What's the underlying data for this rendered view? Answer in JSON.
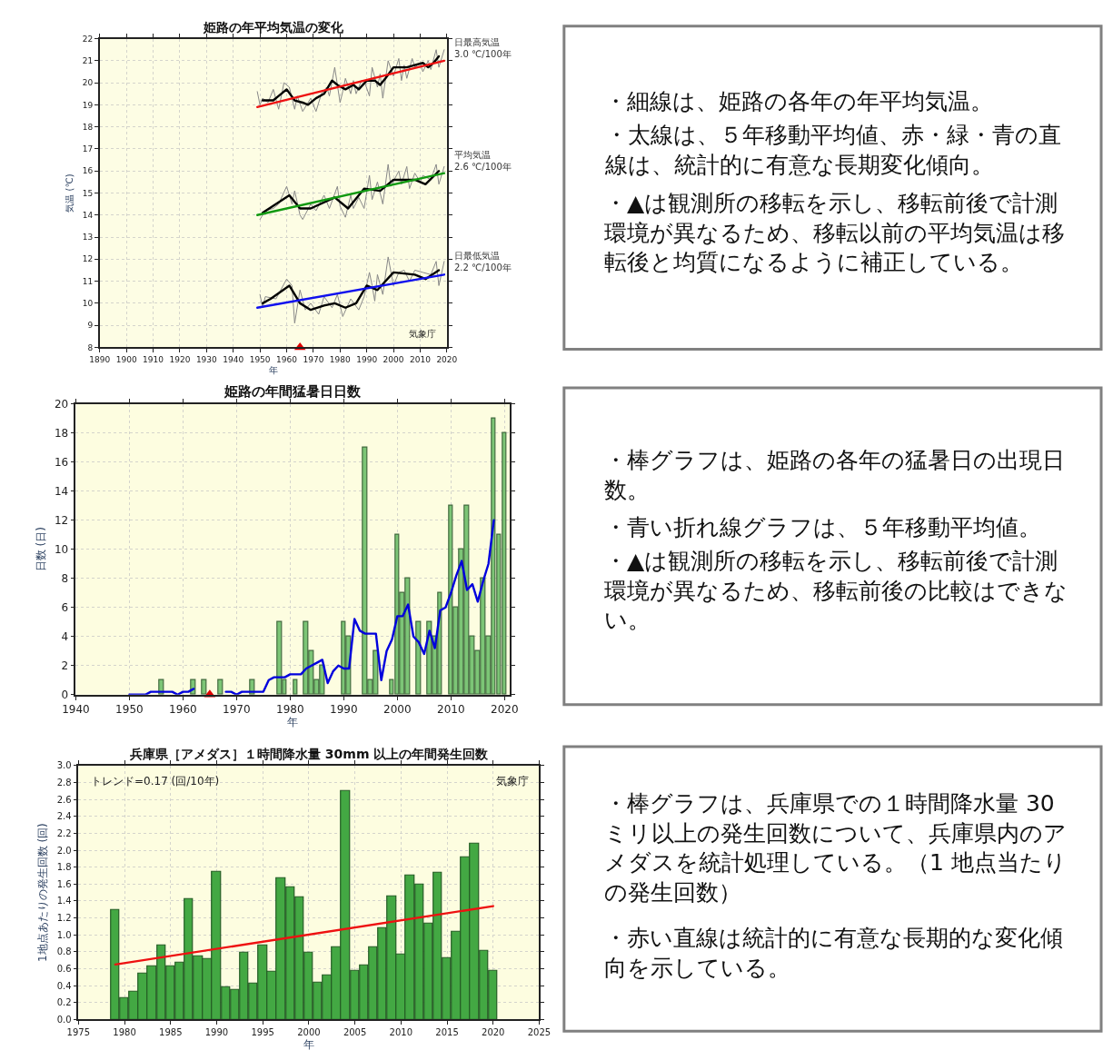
{
  "chart_data": [
    {
      "type": "line",
      "title": "姫路の年平均気温の変化",
      "xlabel": "年",
      "ylabel": "気温 (℃)",
      "xlim": [
        1890,
        2020
      ],
      "ylim": [
        8,
        22
      ],
      "xticks": [
        1890,
        1900,
        1910,
        1920,
        1930,
        1940,
        1950,
        1960,
        1970,
        1980,
        1990,
        2000,
        2010,
        2020
      ],
      "yticks": [
        8,
        9,
        10,
        11,
        12,
        13,
        14,
        15,
        16,
        17,
        18,
        19,
        20,
        21,
        22
      ],
      "grid": true,
      "annotations": [
        "気象庁"
      ],
      "series": [
        {
          "color": "#888888",
          "x": [
            1949,
            1950,
            1951,
            1953,
            1955,
            1957,
            1959,
            1961,
            1963,
            1964,
            1966,
            1969,
            1971,
            1973,
            1975,
            1976,
            1978,
            1979,
            1980,
            1981,
            1982,
            1984,
            1985,
            1986,
            1988,
            1989,
            1991,
            1992,
            1994,
            1995,
            1996,
            1998,
            2000,
            2002,
            2003,
            2004,
            2005,
            2007,
            2008,
            2010,
            2011,
            2013,
            2014,
            2016,
            2017,
            2019
          ],
          "values": [
            19.6,
            19.0,
            19.3,
            19.1,
            19.7,
            18.8,
            20.0,
            19.8,
            18.8,
            19.4,
            18.7,
            19.3,
            18.7,
            19.5,
            19.8,
            19.4,
            20.7,
            19.9,
            19.1,
            19.6,
            20.2,
            19.5,
            20.1,
            19.5,
            20.1,
            20.1,
            19.4,
            20.7,
            19.8,
            20.4,
            19.3,
            21.0,
            20.3,
            21.1,
            20.1,
            20.8,
            20.2,
            21.1,
            20.7,
            20.9,
            20.5,
            21.0,
            20.6,
            21.5,
            20.7,
            21.5
          ]
        },
        {
          "color": "#000000",
          "x": [
            1951,
            1955,
            1957,
            1960,
            1963,
            1966,
            1968,
            1971,
            1974,
            1977,
            1979,
            1982,
            1985,
            1987,
            1990,
            1993,
            1995,
            1997,
            2000,
            2002,
            2005,
            2008,
            2011,
            2013,
            2015,
            2017
          ],
          "values": [
            19.2,
            19.2,
            19.4,
            19.7,
            19.2,
            19.1,
            19.0,
            19.3,
            19.5,
            20.1,
            19.9,
            19.7,
            19.9,
            19.7,
            20.1,
            20.1,
            19.9,
            20.2,
            20.7,
            20.7,
            20.7,
            20.8,
            20.9,
            20.7,
            20.9,
            21.2
          ]
        },
        {
          "name": "日最高気温\n3.0 ℃/100年",
          "color": "#ee1111",
          "x": [
            1949,
            2019
          ],
          "values": [
            18.9,
            21.0
          ]
        },
        {
          "color": "#888888",
          "x": [
            1950,
            1952,
            1955,
            1957,
            1960,
            1962,
            1963,
            1965,
            1966,
            1969,
            1971,
            1974,
            1976,
            1979,
            1980,
            1982,
            1984,
            1985,
            1987,
            1989,
            1991,
            1992,
            1994,
            1996,
            1998,
            1999,
            2002,
            2003,
            2005,
            2006,
            2008,
            2010,
            2011,
            2014,
            2016,
            2017,
            2019
          ],
          "values": [
            13.8,
            14.2,
            14.3,
            14.5,
            15.3,
            14.5,
            15.1,
            14.0,
            13.8,
            14.5,
            14.2,
            14.9,
            14.3,
            15.3,
            14.4,
            13.9,
            14.9,
            14.3,
            14.8,
            14.3,
            15.8,
            14.7,
            15.5,
            14.5,
            16.3,
            15.3,
            16.0,
            15.4,
            16.2,
            15.2,
            15.9,
            15.5,
            15.8,
            15.6,
            16.3,
            15.4,
            16.2
          ]
        },
        {
          "color": "#000000",
          "x": [
            1951,
            1961,
            1965,
            1969,
            1978,
            1983,
            1989,
            1995,
            2000,
            2008,
            2012,
            2017
          ],
          "values": [
            14.1,
            14.9,
            14.3,
            14.3,
            14.8,
            14.3,
            15.2,
            15.1,
            15.6,
            15.6,
            15.4,
            16.0
          ]
        },
        {
          "name": "平均気温\n2.6 ℃/100年",
          "color": "#119911",
          "x": [
            1949,
            2019
          ],
          "values": [
            14.0,
            15.9
          ]
        },
        {
          "color": "#888888",
          "x": [
            1950,
            1951,
            1952,
            1956,
            1960,
            1962,
            1963,
            1965,
            1967,
            1969,
            1972,
            1974,
            1977,
            1979,
            1981,
            1984,
            1987,
            1989,
            1991,
            1992,
            1993,
            1994,
            1996,
            1998,
            2000,
            2002,
            2004,
            2006,
            2008,
            2011,
            2014,
            2016,
            2017,
            2019
          ],
          "values": [
            10.4,
            9.8,
            10.3,
            10.2,
            11.1,
            10.8,
            9.1,
            10.6,
            9.7,
            10.0,
            9.5,
            10.3,
            9.8,
            10.4,
            9.4,
            10.2,
            9.7,
            10.3,
            11.4,
            10.8,
            10.1,
            11.3,
            10.4,
            12.1,
            10.8,
            11.4,
            11.5,
            11.0,
            11.5,
            11.4,
            11.3,
            11.9,
            10.8,
            11.9
          ]
        },
        {
          "color": "#000000",
          "x": [
            1951,
            1954,
            1961,
            1965,
            1969,
            1974,
            1978,
            1982,
            1986,
            1990,
            1994,
            2000,
            2008,
            2012,
            2017
          ],
          "values": [
            10.0,
            10.2,
            10.8,
            10.0,
            9.7,
            9.9,
            10.0,
            9.8,
            10.0,
            10.8,
            10.6,
            11.4,
            11.3,
            11.1,
            11.5
          ]
        },
        {
          "name": "日最低気温\n2.2 ℃/100年",
          "color": "#1111ee",
          "x": [
            1949,
            2019
          ],
          "values": [
            9.8,
            11.3
          ]
        },
        {
          "type": "scatter",
          "marker": "triangle",
          "color": "#e00000",
          "x": [
            1965
          ],
          "values": [
            8
          ]
        }
      ]
    },
    {
      "type": "other",
      "annotations": [
        "・細線は、姫路の各年の年平均気温。",
        "・太線は、５年移動平均値、赤・緑・青の直線は、統計的に有意な長期変化傾向。",
        "・▲は観測所の移転を示し、移転前後で計測環境が異なるため、移転以前の平均気温は移転後と均質になるように補正している。"
      ]
    },
    {
      "type": "bar",
      "title": "姫路の年間猛暑日日数",
      "xlabel": "年",
      "ylabel": "日数 (日)",
      "xlim": [
        1940,
        2021
      ],
      "ylim": [
        0,
        20
      ],
      "xticks": [
        1940,
        1950,
        1960,
        1970,
        1980,
        1990,
        2000,
        2010,
        2020
      ],
      "yticks": [
        0,
        2,
        4,
        6,
        8,
        10,
        12,
        14,
        16,
        18,
        20
      ],
      "grid": true,
      "series": [
        {
          "color": "#7cc576",
          "x": [
            1956,
            1962,
            1964,
            1967,
            1973,
            1978,
            1979,
            1981,
            1983,
            1984,
            1985,
            1986,
            1990,
            1991,
            1994,
            1995,
            1996,
            1999,
            2000,
            2001,
            2002,
            2004,
            2006,
            2007,
            2008,
            2010,
            2011,
            2012,
            2013,
            2014,
            2015,
            2016,
            2017,
            2018,
            2019,
            2020
          ],
          "values": [
            1,
            1,
            1,
            1,
            1,
            5,
            1,
            1,
            5,
            3,
            1,
            2,
            5,
            4,
            17,
            1,
            3,
            1,
            11,
            7,
            8,
            5,
            5,
            4,
            7,
            13,
            6,
            10,
            13,
            4,
            3,
            8,
            4,
            19,
            11,
            18
          ]
        },
        {
          "type": "line",
          "color": "#0000dd",
          "x": [
            1950,
            1951,
            1952,
            1953,
            1954,
            1955,
            1956,
            1957,
            1958,
            1959,
            1960,
            1961,
            1962,
            1963,
            1968,
            1969,
            1970,
            1971,
            1972,
            1973,
            1974,
            1975,
            1976,
            1977,
            1978,
            1979,
            1980,
            1981,
            1982,
            1983,
            1984,
            1985,
            1986,
            1987,
            1988,
            1989,
            1990,
            1991,
            1992,
            1993,
            1994,
            1995,
            1996,
            1997,
            1998,
            1999,
            2000,
            2001,
            2002,
            2003,
            2004,
            2005,
            2006,
            2007,
            2008,
            2009,
            2010,
            2011,
            2012,
            2013,
            2014,
            2015,
            2016,
            2017,
            2018
          ],
          "values": [
            0,
            0,
            0,
            0,
            0.2,
            0.2,
            0.2,
            0.2,
            0.2,
            0,
            0.2,
            0.2,
            0.4,
            null,
            0.2,
            0.2,
            0,
            0.2,
            0.2,
            0.2,
            0.2,
            0.2,
            1.0,
            1.2,
            1.2,
            1.2,
            1.4,
            1.4,
            1.4,
            1.8,
            2.0,
            2.2,
            2.4,
            0.8,
            1.6,
            2.0,
            1.8,
            1.8,
            5.2,
            4.4,
            4.2,
            4.2,
            4.2,
            1.0,
            3.0,
            3.8,
            5.4,
            5.4,
            6.2,
            4.0,
            3.6,
            2.8,
            4.4,
            3.2,
            5.8,
            6.0,
            7.0,
            8.2,
            9.2,
            7.2,
            7.6,
            6.4,
            7.8,
            9.0,
            12.0
          ]
        },
        {
          "type": "scatter",
          "marker": "triangle",
          "color": "#e00000",
          "x": [
            1965
          ],
          "values": [
            0
          ]
        }
      ]
    },
    {
      "type": "other",
      "annotations": [
        "・棒グラフは、姫路の各年の猛暑日の出現日数。",
        "・青い折れ線グラフは、５年移動平均値。",
        "・▲は観測所の移転を示し、移転前後で計測環境が異なるため、移転前後の比較はできない。"
      ]
    },
    {
      "type": "bar",
      "title": "兵庫県［アメダス］１時間降水量 30mm 以上の年間発生回数",
      "xlabel": "年",
      "ylabel": "1地点あたりの発生回数 (回)",
      "xlim": [
        1975,
        2025
      ],
      "ylim": [
        0,
        3
      ],
      "xticks": [
        1975,
        1980,
        1985,
        1990,
        1995,
        2000,
        2005,
        2010,
        2015,
        2020,
        2025
      ],
      "yticks": [
        {
          "value": 0,
          "label": "0.0"
        },
        {
          "value": 0.2,
          "label": "0.2"
        },
        {
          "value": 0.4,
          "label": "0.4"
        },
        {
          "value": 0.6,
          "label": "0.6"
        },
        {
          "value": 0.8,
          "label": "0.8"
        },
        {
          "value": 1,
          "label": "1.0"
        },
        {
          "value": 1.2,
          "label": "1.2"
        },
        {
          "value": 1.4,
          "label": "1.4"
        },
        {
          "value": 1.6,
          "label": "1.6"
        },
        {
          "value": 1.8,
          "label": "1.8"
        },
        {
          "value": 2,
          "label": "2.0"
        },
        {
          "value": 2.2,
          "label": "2.2"
        },
        {
          "value": 2.4,
          "label": "2.4"
        },
        {
          "value": 2.6,
          "label": "2.6"
        },
        {
          "value": 2.8,
          "label": "2.8"
        },
        {
          "value": 3,
          "label": "3.0"
        }
      ],
      "grid": true,
      "annotations": [
        "トレンド=0.17 (回/10年)",
        "気象庁"
      ],
      "series": [
        {
          "color": "#43a843",
          "x": [
            1979,
            1980,
            1981,
            1982,
            1983,
            1984,
            1985,
            1986,
            1987,
            1988,
            1989,
            1990,
            1991,
            1992,
            1993,
            1994,
            1995,
            1996,
            1997,
            1998,
            1999,
            2000,
            2001,
            2002,
            2003,
            2004,
            2005,
            2006,
            2007,
            2008,
            2009,
            2010,
            2011,
            2012,
            2013,
            2014,
            2015,
            2016,
            2017,
            2018,
            2019,
            2020
          ],
          "values": [
            1.29,
            0.25,
            0.33,
            0.54,
            0.63,
            0.88,
            0.63,
            0.67,
            1.42,
            0.75,
            0.71,
            1.75,
            0.38,
            0.35,
            0.79,
            0.42,
            0.88,
            0.56,
            1.67,
            1.56,
            1.44,
            0.79,
            0.44,
            0.52,
            0.85,
            2.7,
            0.58,
            0.64,
            0.85,
            1.08,
            1.46,
            0.77,
            1.7,
            1.59,
            1.13,
            1.73,
            0.73,
            1.04,
            1.92,
            2.08,
            0.81,
            0.58
          ]
        },
        {
          "type": "line",
          "color": "#ee1111",
          "x": [
            1979,
            2020
          ],
          "values": [
            0.65,
            1.34
          ]
        }
      ]
    },
    {
      "type": "other",
      "annotations": [
        "・棒グラフは、兵庫県での１時間降水量 30 ミリ以上の発生回数について、兵庫県内のアメダスを統計処理している。（1 地点当たりの発生回数）",
        "・赤い直線は統計的に有意な長期的な変化傾向を示している。"
      ]
    }
  ]
}
